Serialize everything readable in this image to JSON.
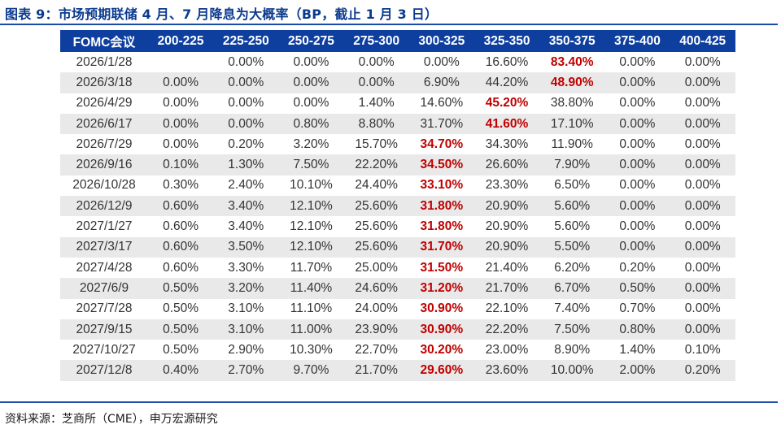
{
  "title": "图表 9：市场预期联储 4 月、7 月降息为大概率（BP，截止 1 月 3 日）",
  "source": "资料来源：芝商所（CME），申万宏源研究",
  "colors": {
    "header_bg": "#0e3f9f",
    "title": "#0b3a8f",
    "highlight": "#c00000",
    "alt_row": "#e9e9e9"
  },
  "table": {
    "headers": [
      "FOMC会议",
      "200-225",
      "225-250",
      "250-275",
      "275-300",
      "300-325",
      "325-350",
      "350-375",
      "375-400",
      "400-425"
    ],
    "rows": [
      {
        "cells": [
          "2026/1/28",
          "",
          "0.00%",
          "0.00%",
          "0.00%",
          "0.00%",
          "16.60%",
          "83.40%",
          "0.00%",
          "0.00%"
        ],
        "highlight_col": 7
      },
      {
        "cells": [
          "2026/3/18",
          "0.00%",
          "0.00%",
          "0.00%",
          "0.00%",
          "6.90%",
          "44.20%",
          "48.90%",
          "0.00%",
          "0.00%"
        ],
        "highlight_col": 7
      },
      {
        "cells": [
          "2026/4/29",
          "0.00%",
          "0.00%",
          "0.00%",
          "1.40%",
          "14.60%",
          "45.20%",
          "38.80%",
          "0.00%",
          "0.00%"
        ],
        "highlight_col": 6
      },
      {
        "cells": [
          "2026/6/17",
          "0.00%",
          "0.00%",
          "0.80%",
          "8.80%",
          "31.70%",
          "41.60%",
          "17.10%",
          "0.00%",
          "0.00%"
        ],
        "highlight_col": 6
      },
      {
        "cells": [
          "2026/7/29",
          "0.00%",
          "0.20%",
          "3.20%",
          "15.70%",
          "34.70%",
          "34.30%",
          "11.90%",
          "0.00%",
          "0.00%"
        ],
        "highlight_col": 5
      },
      {
        "cells": [
          "2026/9/16",
          "0.10%",
          "1.30%",
          "7.50%",
          "22.20%",
          "34.50%",
          "26.60%",
          "7.90%",
          "0.00%",
          "0.00%"
        ],
        "highlight_col": 5
      },
      {
        "cells": [
          "2026/10/28",
          "0.30%",
          "2.40%",
          "10.10%",
          "24.40%",
          "33.10%",
          "23.30%",
          "6.50%",
          "0.00%",
          "0.00%"
        ],
        "highlight_col": 5
      },
      {
        "cells": [
          "2026/12/9",
          "0.60%",
          "3.40%",
          "12.10%",
          "25.60%",
          "31.80%",
          "20.90%",
          "5.60%",
          "0.00%",
          "0.00%"
        ],
        "highlight_col": 5
      },
      {
        "cells": [
          "2027/1/27",
          "0.60%",
          "3.40%",
          "12.10%",
          "25.60%",
          "31.80%",
          "20.90%",
          "5.60%",
          "0.00%",
          "0.00%"
        ],
        "highlight_col": 5
      },
      {
        "cells": [
          "2027/3/17",
          "0.60%",
          "3.50%",
          "12.10%",
          "25.60%",
          "31.70%",
          "20.90%",
          "5.50%",
          "0.00%",
          "0.00%"
        ],
        "highlight_col": 5
      },
      {
        "cells": [
          "2027/4/28",
          "0.60%",
          "3.30%",
          "11.70%",
          "25.00%",
          "31.50%",
          "21.40%",
          "6.20%",
          "0.20%",
          "0.00%"
        ],
        "highlight_col": 5
      },
      {
        "cells": [
          "2027/6/9",
          "0.50%",
          "3.20%",
          "11.40%",
          "24.60%",
          "31.20%",
          "21.70%",
          "6.70%",
          "0.50%",
          "0.00%"
        ],
        "highlight_col": 5
      },
      {
        "cells": [
          "2027/7/28",
          "0.50%",
          "3.10%",
          "11.10%",
          "24.00%",
          "30.90%",
          "22.10%",
          "7.40%",
          "0.70%",
          "0.00%"
        ],
        "highlight_col": 5
      },
      {
        "cells": [
          "2027/9/15",
          "0.50%",
          "3.10%",
          "11.00%",
          "23.90%",
          "30.90%",
          "22.20%",
          "7.50%",
          "0.80%",
          "0.00%"
        ],
        "highlight_col": 5
      },
      {
        "cells": [
          "2027/10/27",
          "0.50%",
          "2.90%",
          "10.30%",
          "22.70%",
          "30.20%",
          "23.00%",
          "8.90%",
          "1.40%",
          "0.10%"
        ],
        "highlight_col": 5
      },
      {
        "cells": [
          "2027/12/8",
          "0.40%",
          "2.70%",
          "9.70%",
          "21.70%",
          "29.60%",
          "23.60%",
          "10.00%",
          "2.00%",
          "0.20%"
        ],
        "highlight_col": 5
      }
    ]
  }
}
